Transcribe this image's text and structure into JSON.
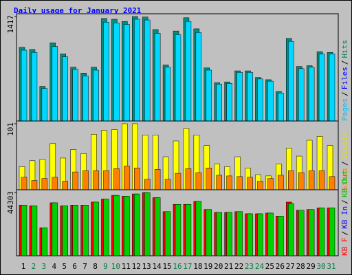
{
  "title": "Daily usage for January 2021",
  "legend_separator": "/",
  "chart_data": [
    {
      "type": "bar",
      "ylim": [
        0,
        1417
      ],
      "yticks": [
        1417
      ],
      "legend": [
        {
          "text": "Pages",
          "color": "#00c0ff"
        },
        {
          "text": "Files",
          "color": "#0000ff"
        },
        {
          "text": "Hits",
          "color": "#00805c"
        }
      ],
      "series": [
        {
          "color": "#008f80",
          "values": [
            1000,
            970,
            470,
            1060,
            910,
            730,
            650,
            730,
            1390,
            1380,
            1350,
            1417,
            1410,
            1240,
            760,
            1220,
            1400,
            1250,
            720,
            520,
            530,
            680,
            680,
            590,
            560,
            400,
            1120,
            740,
            750,
            940,
            930
          ]
        },
        {
          "color": "#00d8ff",
          "values": [
            960,
            930,
            440,
            1010,
            870,
            700,
            610,
            690,
            1340,
            1330,
            1310,
            1380,
            1370,
            1190,
            730,
            1170,
            1350,
            1200,
            690,
            500,
            510,
            660,
            660,
            570,
            540,
            380,
            1080,
            710,
            730,
            910,
            910
          ]
        }
      ]
    },
    {
      "type": "bar",
      "ylim": [
        0,
        101
      ],
      "yticks": [
        101
      ],
      "legend": [
        {
          "text": "Sites",
          "color": "#ff8000"
        },
        {
          "text": "Visits",
          "color": "#e0e000"
        }
      ],
      "series": [
        {
          "color": "#ffff00",
          "values": [
            36,
            45,
            47,
            71,
            49,
            62,
            56,
            85,
            91,
            92,
            101,
            101,
            84,
            84,
            51,
            75,
            94,
            84,
            68,
            40,
            36,
            51,
            34,
            24,
            22,
            40,
            64,
            52,
            76,
            82,
            68
          ]
        },
        {
          "color": "#ff8000",
          "values": [
            20,
            15,
            18,
            20,
            14,
            28,
            30,
            30,
            30,
            33,
            37,
            34,
            17,
            32,
            17,
            26,
            33,
            27,
            34,
            23,
            22,
            21,
            20,
            14,
            18,
            23,
            30,
            27,
            30,
            30,
            21
          ]
        }
      ]
    },
    {
      "type": "bar",
      "ylim": [
        0,
        44303
      ],
      "yticks": [
        44303
      ],
      "legend": [
        {
          "text": "KB F",
          "color": "#ff0000"
        },
        {
          "text": "KB In",
          "color": "#0000ff"
        },
        {
          "text": "KB Out",
          "color": "#00c000"
        }
      ],
      "categories": [
        "1",
        "2",
        "3",
        "4",
        "5",
        "6",
        "7",
        "8",
        "9",
        "10",
        "11",
        "12",
        "13",
        "14",
        "15",
        "16",
        "17",
        "18",
        "19",
        "20",
        "21",
        "22",
        "23",
        "24",
        "25",
        "26",
        "27",
        "28",
        "29",
        "30",
        "31"
      ],
      "category_colors": [
        "#000000",
        "#008040",
        "#008040",
        "#000000",
        "#000000",
        "#000000",
        "#000000",
        "#000000",
        "#008040",
        "#008040",
        "#000000",
        "#000000",
        "#000000",
        "#000000",
        "#000000",
        "#008040",
        "#008040",
        "#000000",
        "#000000",
        "#000000",
        "#000000",
        "#000000",
        "#008040",
        "#008040",
        "#000000",
        "#000000",
        "#000000",
        "#000000",
        "#000000",
        "#008040",
        "#008040"
      ],
      "series": [
        {
          "color": "#ff0000",
          "values": [
            35500,
            35000,
            19600,
            37100,
            35000,
            35500,
            35500,
            37600,
            39700,
            42300,
            41700,
            43300,
            44303,
            40700,
            30900,
            36000,
            36000,
            38100,
            32400,
            30400,
            30400,
            30900,
            29400,
            29400,
            29900,
            27800,
            37600,
            31900,
            32400,
            33500,
            33500
          ]
        },
        {
          "color": "#00d000",
          "values": [
            35500,
            35000,
            19600,
            37100,
            35000,
            35500,
            35500,
            37600,
            39700,
            42300,
            41700,
            43300,
            44303,
            40700,
            30900,
            36000,
            36000,
            38100,
            32400,
            30400,
            30400,
            30900,
            29400,
            29400,
            29900,
            27800,
            36600,
            31900,
            32400,
            33500,
            33500
          ]
        }
      ]
    }
  ]
}
